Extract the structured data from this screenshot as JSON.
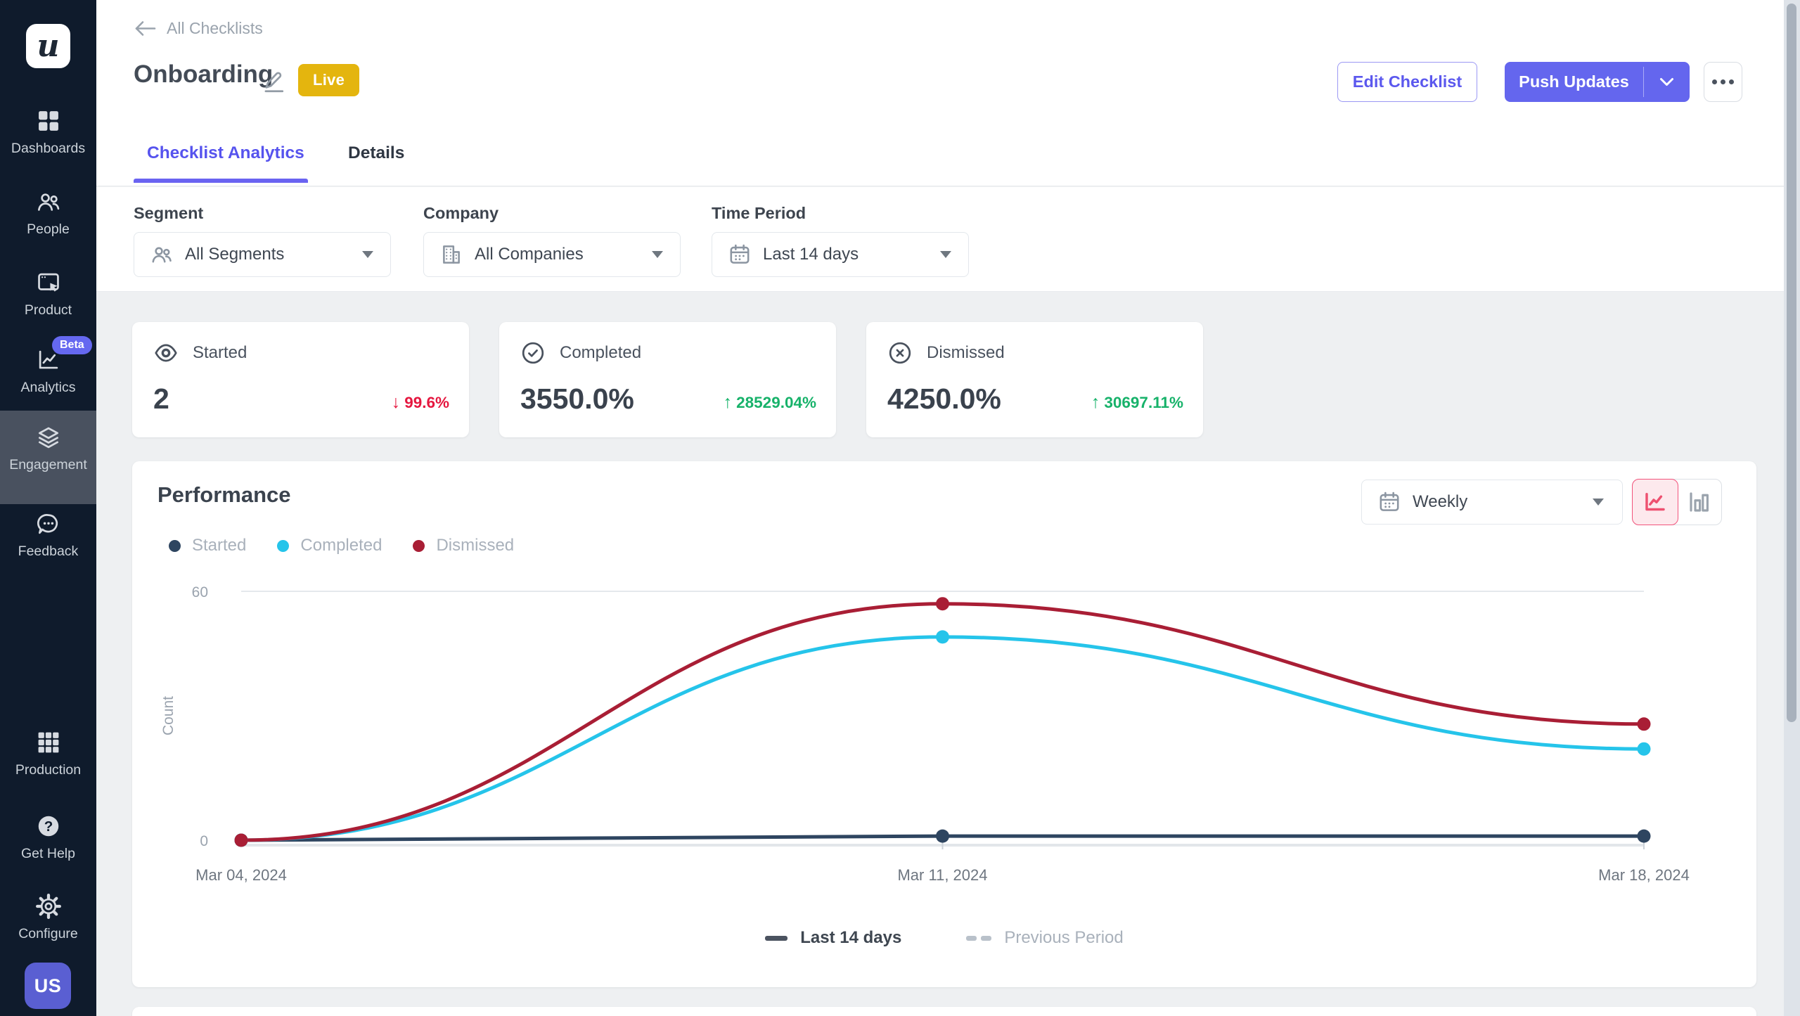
{
  "sidebar": {
    "logo_text": "u",
    "items": [
      {
        "label": "Dashboards",
        "icon": "dashboards-icon"
      },
      {
        "label": "People",
        "icon": "people-icon"
      },
      {
        "label": "Product",
        "icon": "product-icon"
      },
      {
        "label": "Analytics",
        "icon": "analytics-icon",
        "badge": "Beta"
      },
      {
        "label": "Engagement",
        "icon": "engagement-icon",
        "active": true
      },
      {
        "label": "Feedback",
        "icon": "feedback-icon"
      },
      {
        "label": "Production",
        "icon": "production-icon"
      },
      {
        "label": "Get Help",
        "icon": "help-icon"
      },
      {
        "label": "Configure",
        "icon": "configure-icon"
      }
    ],
    "avatar_initials": "US"
  },
  "header": {
    "back_label": "All Checklists",
    "title": "Onboarding",
    "status_badge": "Live",
    "edit_checklist_label": "Edit Checklist",
    "push_updates_label": "Push Updates",
    "tabs": [
      {
        "label": "Checklist Analytics",
        "active": true
      },
      {
        "label": "Details",
        "active": false
      }
    ]
  },
  "filters": {
    "segment": {
      "label": "Segment",
      "value": "All Segments"
    },
    "company": {
      "label": "Company",
      "value": "All Companies"
    },
    "time_period": {
      "label": "Time Period",
      "value": "Last 14 days"
    }
  },
  "stats": [
    {
      "label": "Started",
      "value": "2",
      "change": "99.6%",
      "direction": "down",
      "change_color": "#e5173f"
    },
    {
      "label": "Completed",
      "value": "3550.0%",
      "change": "28529.04%",
      "direction": "up",
      "change_color": "#17b26a"
    },
    {
      "label": "Dismissed",
      "value": "4250.0%",
      "change": "30697.11%",
      "direction": "up",
      "change_color": "#17b26a"
    }
  ],
  "performance": {
    "title": "Performance",
    "granularity": "Weekly",
    "legend": [
      {
        "label": "Started",
        "color": "#2e4560"
      },
      {
        "label": "Completed",
        "color": "#25c4ea"
      },
      {
        "label": "Dismissed",
        "color": "#a91e35"
      }
    ],
    "bottom_legend": {
      "current": "Last 14 days",
      "previous": "Previous Period"
    }
  },
  "chart_data": {
    "type": "line",
    "x": [
      "Mar 04, 2024",
      "Mar 11, 2024",
      "Mar 18, 2024"
    ],
    "series": [
      {
        "name": "Started",
        "color": "#2e4560",
        "values": [
          0,
          1,
          1
        ]
      },
      {
        "name": "Completed",
        "color": "#25c4ea",
        "values": [
          0,
          49,
          22
        ]
      },
      {
        "name": "Dismissed",
        "color": "#a91e35",
        "values": [
          0,
          57,
          28
        ]
      }
    ],
    "ylabel": "Count",
    "yticks": [
      0,
      60
    ],
    "ylim": [
      0,
      63
    ],
    "grid": "top-line-only",
    "legend_position": "top-left",
    "comparison": {
      "current": "Last 14 days",
      "previous": "Previous Period"
    }
  },
  "colors": {
    "accent_purple": "#6466ee",
    "sidebar_bg": "#0f1b2c",
    "sidebar_active_bg": "#49515f",
    "live_badge": "#e4b50e",
    "negative": "#e5173f",
    "positive": "#17b26a",
    "toggle_selected": "#f2547c",
    "page_bg": "#eef0f2"
  }
}
